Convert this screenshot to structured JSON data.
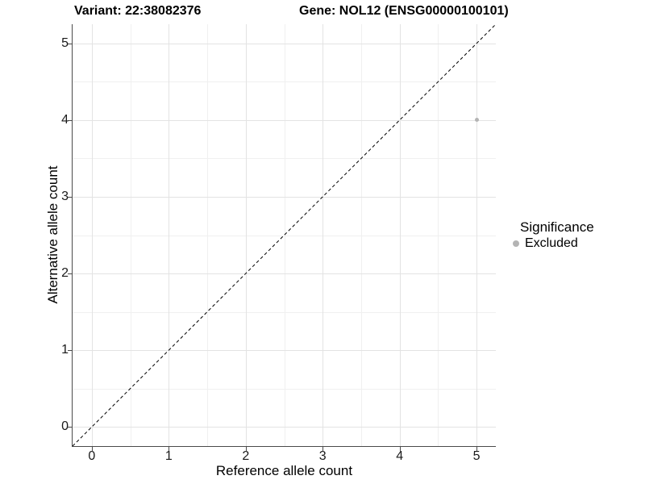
{
  "titles": {
    "left": "Variant: 22:38082376",
    "right": "Gene: NOL12 (ENSG00000100101)"
  },
  "chart_data": {
    "type": "scatter",
    "xlabel": "Reference allele count",
    "ylabel": "Alternative allele count",
    "xlim": [
      -0.25,
      5.25
    ],
    "ylim": [
      -0.25,
      5.25
    ],
    "xticks": [
      0,
      1,
      2,
      3,
      4,
      5
    ],
    "yticks": [
      0,
      1,
      2,
      3,
      4,
      5
    ],
    "x_minor_ticks": [
      0.5,
      1.5,
      2.5,
      3.5,
      4.5
    ],
    "y_minor_ticks": [
      0.5,
      1.5,
      2.5,
      3.5,
      4.5
    ],
    "grid": "major+minor",
    "series": [
      {
        "name": "Excluded",
        "color": "#b4b4b4",
        "point_radius": 2.5,
        "points": [
          {
            "x": 5,
            "y": 4
          }
        ]
      }
    ],
    "identity_line": {
      "equation": "y = x",
      "style": "dashed",
      "color": "#000000"
    },
    "legend": {
      "title": "Significance",
      "position": "right",
      "entries": [
        {
          "label": "Excluded",
          "color": "#b4b4b4"
        }
      ]
    },
    "colors": {
      "background": "#ffffff",
      "grid_major": "#e3e3e3",
      "grid_minor": "#f0f0f0",
      "axis": "#4a4a4a",
      "tick_text": "#1a1a1a"
    }
  }
}
